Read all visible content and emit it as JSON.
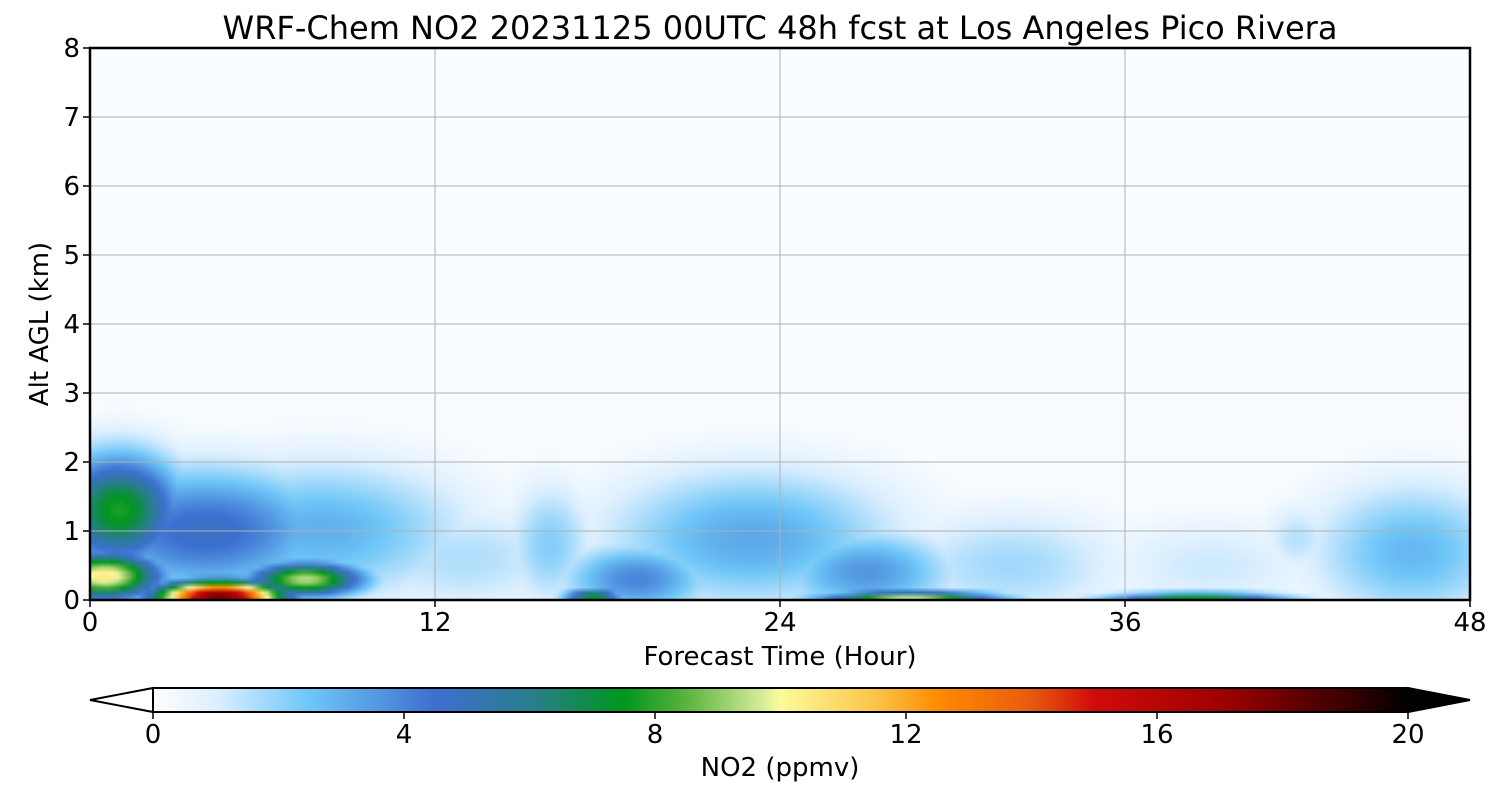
{
  "chart_data": {
    "type": "heatmap",
    "title": "WRF-Chem NO2  20231125 00UTC 48h fcst at Los Angeles Pico Rivera",
    "xlabel": "Forecast Time (Hour)",
    "ylabel": "Alt AGL (km)",
    "xlim": [
      0,
      48
    ],
    "ylim": [
      0,
      8
    ],
    "x_ticks": [
      0,
      12,
      24,
      36,
      48
    ],
    "y_ticks": [
      0,
      1,
      2,
      3,
      4,
      5,
      6,
      7,
      8
    ],
    "grid": true,
    "colorbar": {
      "label": "NO2  (ppmv)",
      "min": 0,
      "max": 20,
      "ticks": [
        0,
        4,
        8,
        12,
        16,
        20
      ],
      "extend": "both",
      "stops": [
        {
          "v": 0,
          "color": "#ffffff"
        },
        {
          "v": 1,
          "color": "#dcefff"
        },
        {
          "v": 2.5,
          "color": "#6ec6f7"
        },
        {
          "v": 4.5,
          "color": "#3d6fd0"
        },
        {
          "v": 6,
          "color": "#2a7d8e"
        },
        {
          "v": 7.5,
          "color": "#00961e"
        },
        {
          "v": 8.5,
          "color": "#5bb33d"
        },
        {
          "v": 9.7,
          "color": "#d4ec9a"
        },
        {
          "v": 10,
          "color": "#fffa9a"
        },
        {
          "v": 11.5,
          "color": "#f9c64a"
        },
        {
          "v": 12.5,
          "color": "#ff8c00"
        },
        {
          "v": 14,
          "color": "#e85a10"
        },
        {
          "v": 15,
          "color": "#d20a0a"
        },
        {
          "v": 17,
          "color": "#a00000"
        },
        {
          "v": 19,
          "color": "#3a0000"
        },
        {
          "v": 20,
          "color": "#000000"
        }
      ]
    },
    "field": {
      "description_units": "NO2 ppmv by forecast hour (x) and altitude km (y)",
      "background_value": 0.15,
      "blobs": [
        {
          "x": 1,
          "y": 1.3,
          "sx": 2.2,
          "sy": 0.8,
          "v": 7.8
        },
        {
          "x": 0.5,
          "y": 0.35,
          "sx": 2.0,
          "sy": 0.35,
          "v": 10.5
        },
        {
          "x": 4.5,
          "y": 0.05,
          "sx": 2.2,
          "sy": 0.22,
          "v": 18
        },
        {
          "x": 7.5,
          "y": 0.3,
          "sx": 2.0,
          "sy": 0.25,
          "v": 9.5
        },
        {
          "x": 4,
          "y": 1.0,
          "sx": 4.5,
          "sy": 0.9,
          "v": 4.8
        },
        {
          "x": 8,
          "y": 1.0,
          "sx": 5.0,
          "sy": 1.0,
          "v": 3.0
        },
        {
          "x": 13,
          "y": 0.6,
          "sx": 4.0,
          "sy": 0.8,
          "v": 1.6
        },
        {
          "x": 16,
          "y": 0.8,
          "sx": 1.5,
          "sy": 0.9,
          "v": 2.2
        },
        {
          "x": 17.5,
          "y": 0.05,
          "sx": 1.0,
          "sy": 0.12,
          "v": 7.5
        },
        {
          "x": 19,
          "y": 0.3,
          "sx": 2.5,
          "sy": 0.5,
          "v": 4.0
        },
        {
          "x": 23,
          "y": 0.9,
          "sx": 5.0,
          "sy": 1.0,
          "v": 3.2
        },
        {
          "x": 27,
          "y": 0.4,
          "sx": 3.0,
          "sy": 0.6,
          "v": 3.6
        },
        {
          "x": 28.5,
          "y": 0.03,
          "sx": 3.0,
          "sy": 0.1,
          "v": 9.5
        },
        {
          "x": 32,
          "y": 0.5,
          "sx": 4.0,
          "sy": 0.8,
          "v": 1.8
        },
        {
          "x": 38.5,
          "y": 0.03,
          "sx": 3.0,
          "sy": 0.08,
          "v": 7.5
        },
        {
          "x": 39,
          "y": 0.5,
          "sx": 4.0,
          "sy": 0.7,
          "v": 1.2
        },
        {
          "x": 42,
          "y": 0.9,
          "sx": 1.2,
          "sy": 0.5,
          "v": 1.5
        },
        {
          "x": 46,
          "y": 0.7,
          "sx": 3.5,
          "sy": 1.0,
          "v": 2.8
        }
      ]
    }
  }
}
